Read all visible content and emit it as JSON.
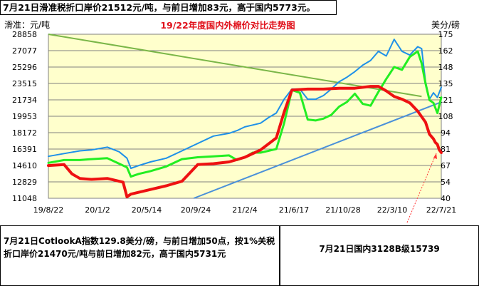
{
  "chart_data": {
    "type": "line",
    "title": "19/22年度国内外棉价对比走势图",
    "ylabel_left": "滑准：元/吨",
    "ylabel_right": "美分/磅",
    "left_axis_ticks": [
      11048,
      12829,
      14610,
      16391,
      18172,
      19953,
      21734,
      23515,
      25296,
      27077,
      28858
    ],
    "right_axis_ticks": [
      40,
      54,
      67,
      81,
      94,
      108,
      121,
      135,
      148,
      162,
      175
    ],
    "ylim_left": [
      11048,
      28858
    ],
    "ylim_right": [
      40,
      175
    ],
    "x_ticks": [
      "19/8/22",
      "20/1/2",
      "20/5/14",
      "20/9/24",
      "21/2/4",
      "21/6/17",
      "21/10/28",
      "22/3/10",
      "22/7/21"
    ],
    "xlim": [
      0,
      100
    ],
    "grid": true,
    "legend": "none",
    "series": [
      {
        "color": "#1e90e8",
        "axis": "left",
        "x": [
          0,
          4,
          8,
          11,
          15,
          18,
          20,
          21,
          23,
          26,
          30,
          34,
          38,
          42,
          46,
          48,
          50,
          52,
          54,
          56,
          58,
          60,
          62,
          64,
          66,
          68,
          70,
          72,
          74,
          76,
          78,
          80,
          82,
          84,
          86,
          88,
          90,
          92,
          94,
          95,
          96,
          97,
          98,
          99,
          100
        ],
        "y": [
          15600,
          15900,
          16200,
          16300,
          16600,
          16100,
          15400,
          14300,
          14600,
          15000,
          15400,
          16200,
          17000,
          17800,
          18100,
          18400,
          18800,
          19000,
          19200,
          19800,
          20300,
          21800,
          22900,
          22900,
          21800,
          21800,
          22200,
          22900,
          23700,
          24200,
          24800,
          25500,
          26000,
          27000,
          26500,
          28300,
          27000,
          26600,
          27500,
          27300,
          23700,
          21800,
          22500,
          22000,
          23100
        ]
      },
      {
        "color": "#22ee22",
        "axis": "left",
        "x": [
          0,
          4,
          8,
          11,
          15,
          18,
          20,
          21,
          23,
          26,
          30,
          34,
          38,
          42,
          46,
          48,
          50,
          52,
          54,
          56,
          58,
          60,
          62,
          64,
          66,
          68,
          70,
          72,
          74,
          76,
          78,
          80,
          82,
          84,
          86,
          88,
          90,
          92,
          94,
          95,
          96,
          97,
          98,
          99,
          100
        ],
        "y": [
          14900,
          15200,
          15200,
          15300,
          15400,
          14800,
          14400,
          13400,
          13700,
          14000,
          14500,
          15300,
          15500,
          15600,
          15700,
          15200,
          15500,
          16000,
          16000,
          16200,
          16400,
          19200,
          22800,
          22500,
          19600,
          19500,
          19700,
          20100,
          21000,
          21500,
          22400,
          21300,
          21100,
          22600,
          24000,
          25300,
          25000,
          26400,
          27000,
          25700,
          23500,
          21700,
          21400,
          20300,
          22000
        ]
      },
      {
        "color": "#ee1111",
        "axis": "left",
        "x": [
          0,
          4,
          6,
          8,
          11,
          15,
          19,
          20,
          21,
          23,
          26,
          30,
          34,
          38,
          42,
          46,
          50,
          54,
          58,
          60,
          62,
          66,
          70,
          74,
          78,
          82,
          84,
          86,
          88,
          90,
          92,
          94,
          96,
          97,
          98,
          98.5,
          99,
          99.5,
          100
        ],
        "y": [
          14600,
          14700,
          13700,
          13200,
          13100,
          13200,
          12800,
          11200,
          11500,
          11700,
          12000,
          12400,
          12900,
          14700,
          14800,
          15000,
          15500,
          16300,
          17600,
          20400,
          22800,
          22900,
          22900,
          23000,
          23000,
          23200,
          23200,
          22700,
          22100,
          21800,
          21400,
          20500,
          19300,
          18000,
          17500,
          17100,
          16900,
          16300,
          16000
        ]
      }
    ],
    "trendlines": [
      {
        "color": "#4a90d9",
        "axis": "left",
        "x": [
          37,
          100
        ],
        "y": [
          11048,
          21500
        ]
      },
      {
        "color": "#7ab648",
        "axis": "left",
        "x": [
          0,
          95
        ],
        "y": [
          28858,
          22100
        ]
      }
    ],
    "annotations": [
      {
        "text": "7月21日滑准税折口岸价21512元/吨，与前日增加83元，高于国内5773元。"
      },
      {
        "text": "7月21日CotlookA指数129.8美分/磅，与前日增加50点，按1%关税折口岸价21470元/吨与前日增加82元，高于国内5731元"
      },
      {
        "text": "7月21日国内3128B级15739"
      }
    ]
  }
}
